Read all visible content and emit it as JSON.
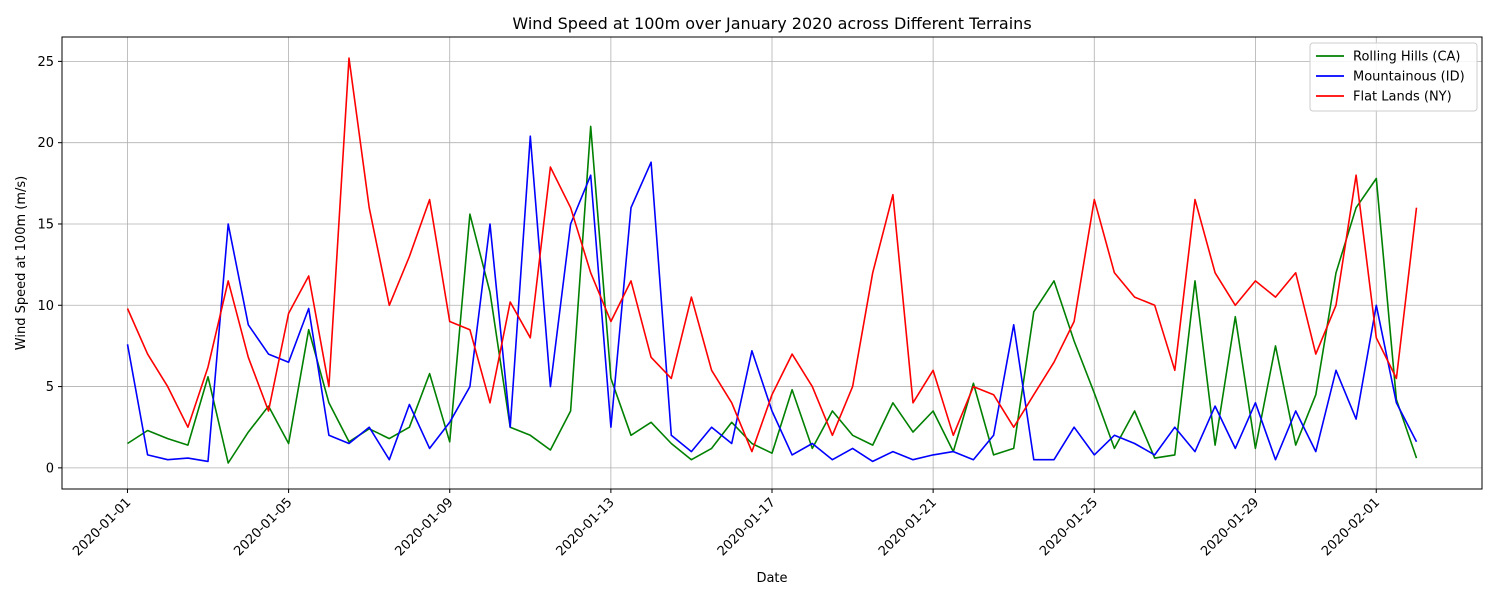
{
  "chart_data": {
    "type": "line",
    "title": "Wind Speed at 100m over January 2020 across Different Terrains",
    "xlabel": "Date",
    "ylabel": "Wind Speed at 100m (m/s)",
    "xlim": [
      "2019-12-30 09:00",
      "2020-02-03 15:00"
    ],
    "ylim": [
      -1.3,
      26.5
    ],
    "x_ticks": [
      "2020-01-01",
      "2020-01-05",
      "2020-01-09",
      "2020-01-13",
      "2020-01-17",
      "2020-01-21",
      "2020-01-25",
      "2020-01-29",
      "2020-02-01"
    ],
    "y_ticks": [
      0,
      5,
      10,
      15,
      20,
      25
    ],
    "grid": true,
    "legend_position": "top-right",
    "series": [
      {
        "name": "Rolling Hills (CA)",
        "color": "#008000",
        "x": [
          "2020-01-01 00:00",
          "2020-01-01 12:00",
          "2020-01-02 00:00",
          "2020-01-02 12:00",
          "2020-01-03 00:00",
          "2020-01-03 12:00",
          "2020-01-04 00:00",
          "2020-01-04 12:00",
          "2020-01-05 00:00",
          "2020-01-05 12:00",
          "2020-01-06 00:00",
          "2020-01-06 12:00",
          "2020-01-07 00:00",
          "2020-01-07 12:00",
          "2020-01-08 00:00",
          "2020-01-08 12:00",
          "2020-01-09 00:00",
          "2020-01-09 12:00",
          "2020-01-10 00:00",
          "2020-01-10 12:00",
          "2020-01-11 00:00",
          "2020-01-11 12:00",
          "2020-01-12 00:00",
          "2020-01-12 12:00",
          "2020-01-13 00:00",
          "2020-01-13 12:00",
          "2020-01-14 00:00",
          "2020-01-14 12:00",
          "2020-01-15 00:00",
          "2020-01-15 12:00",
          "2020-01-16 00:00",
          "2020-01-16 12:00",
          "2020-01-17 00:00",
          "2020-01-17 12:00",
          "2020-01-18 00:00",
          "2020-01-18 12:00",
          "2020-01-19 00:00",
          "2020-01-19 12:00",
          "2020-01-20 00:00",
          "2020-01-20 12:00",
          "2020-01-21 00:00",
          "2020-01-21 12:00",
          "2020-01-22 00:00",
          "2020-01-22 12:00",
          "2020-01-23 00:00",
          "2020-01-23 12:00",
          "2020-01-24 00:00",
          "2020-01-24 12:00",
          "2020-01-25 00:00",
          "2020-01-25 12:00",
          "2020-01-26 00:00",
          "2020-01-26 12:00",
          "2020-01-27 00:00",
          "2020-01-27 12:00",
          "2020-01-28 00:00",
          "2020-01-28 12:00",
          "2020-01-29 00:00",
          "2020-01-29 12:00",
          "2020-01-30 00:00",
          "2020-01-30 12:00",
          "2020-01-31 00:00",
          "2020-01-31 12:00",
          "2020-02-01 00:00",
          "2020-02-01 12:00",
          "2020-02-02 00:00"
        ],
        "values": [
          1.5,
          2.3,
          1.8,
          1.4,
          5.6,
          0.3,
          2.2,
          3.8,
          1.5,
          8.5,
          4.0,
          1.6,
          2.4,
          1.8,
          2.5,
          5.8,
          1.6,
          15.6,
          10.8,
          2.5,
          2.0,
          1.1,
          3.5,
          21.0,
          5.5,
          2.0,
          2.8,
          1.5,
          0.5,
          1.2,
          2.8,
          1.5,
          0.9,
          4.8,
          1.2,
          3.5,
          2.0,
          1.4,
          4.0,
          2.2,
          3.5,
          1.0,
          5.2,
          0.8,
          1.2,
          9.6,
          11.5,
          7.8,
          4.6,
          1.2,
          3.5,
          0.6,
          0.8,
          11.5,
          1.4,
          9.3,
          1.2,
          7.5,
          1.4,
          4.5,
          12.0,
          16.0,
          17.8,
          4.2,
          0.6
        ]
      },
      {
        "name": "Mountainous (ID)",
        "color": "#0000ff",
        "x": [
          "2020-01-01 00:00",
          "2020-01-01 12:00",
          "2020-01-02 00:00",
          "2020-01-02 12:00",
          "2020-01-03 00:00",
          "2020-01-03 12:00",
          "2020-01-04 00:00",
          "2020-01-04 12:00",
          "2020-01-05 00:00",
          "2020-01-05 12:00",
          "2020-01-06 00:00",
          "2020-01-06 12:00",
          "2020-01-07 00:00",
          "2020-01-07 12:00",
          "2020-01-08 00:00",
          "2020-01-08 12:00",
          "2020-01-09 00:00",
          "2020-01-09 12:00",
          "2020-01-10 00:00",
          "2020-01-10 12:00",
          "2020-01-11 00:00",
          "2020-01-11 12:00",
          "2020-01-12 00:00",
          "2020-01-12 12:00",
          "2020-01-13 00:00",
          "2020-01-13 12:00",
          "2020-01-14 00:00",
          "2020-01-14 12:00",
          "2020-01-15 00:00",
          "2020-01-15 12:00",
          "2020-01-16 00:00",
          "2020-01-16 12:00",
          "2020-01-17 00:00",
          "2020-01-17 12:00",
          "2020-01-18 00:00",
          "2020-01-18 12:00",
          "2020-01-19 00:00",
          "2020-01-19 12:00",
          "2020-01-20 00:00",
          "2020-01-20 12:00",
          "2020-01-21 00:00",
          "2020-01-21 12:00",
          "2020-01-22 00:00",
          "2020-01-22 12:00",
          "2020-01-23 00:00",
          "2020-01-23 12:00",
          "2020-01-24 00:00",
          "2020-01-24 12:00",
          "2020-01-25 00:00",
          "2020-01-25 12:00",
          "2020-01-26 00:00",
          "2020-01-26 12:00",
          "2020-01-27 00:00",
          "2020-01-27 12:00",
          "2020-01-28 00:00",
          "2020-01-28 12:00",
          "2020-01-29 00:00",
          "2020-01-29 12:00",
          "2020-01-30 00:00",
          "2020-01-30 12:00",
          "2020-01-31 00:00",
          "2020-01-31 12:00",
          "2020-02-01 00:00",
          "2020-02-01 12:00",
          "2020-02-02 00:00"
        ],
        "values": [
          7.6,
          0.8,
          0.5,
          0.6,
          0.4,
          15.0,
          8.8,
          7.0,
          6.5,
          9.8,
          2.0,
          1.5,
          2.5,
          0.5,
          3.9,
          1.2,
          2.8,
          5.0,
          15.0,
          2.5,
          20.4,
          5.0,
          15.0,
          18.0,
          2.5,
          16.0,
          18.8,
          2.0,
          1.0,
          2.5,
          1.5,
          7.2,
          3.5,
          0.8,
          1.5,
          0.5,
          1.2,
          0.4,
          1.0,
          0.5,
          0.8,
          1.0,
          0.5,
          2.0,
          8.8,
          0.5,
          0.5,
          2.5,
          0.8,
          2.0,
          1.5,
          0.8,
          2.5,
          1.0,
          3.8,
          1.2,
          4.0,
          0.5,
          3.5,
          1.0,
          6.0,
          3.0,
          10.0,
          4.0,
          1.6
        ]
      },
      {
        "name": "Flat Lands (NY)",
        "color": "#ff0000",
        "x": [
          "2020-01-01 00:00",
          "2020-01-01 12:00",
          "2020-01-02 00:00",
          "2020-01-02 12:00",
          "2020-01-03 00:00",
          "2020-01-03 12:00",
          "2020-01-04 00:00",
          "2020-01-04 12:00",
          "2020-01-05 00:00",
          "2020-01-05 12:00",
          "2020-01-06 00:00",
          "2020-01-06 12:00",
          "2020-01-07 00:00",
          "2020-01-07 12:00",
          "2020-01-08 00:00",
          "2020-01-08 12:00",
          "2020-01-09 00:00",
          "2020-01-09 12:00",
          "2020-01-10 00:00",
          "2020-01-10 12:00",
          "2020-01-11 00:00",
          "2020-01-11 12:00",
          "2020-01-12 00:00",
          "2020-01-12 12:00",
          "2020-01-13 00:00",
          "2020-01-13 12:00",
          "2020-01-14 00:00",
          "2020-01-14 12:00",
          "2020-01-15 00:00",
          "2020-01-15 12:00",
          "2020-01-16 00:00",
          "2020-01-16 12:00",
          "2020-01-17 00:00",
          "2020-01-17 12:00",
          "2020-01-18 00:00",
          "2020-01-18 12:00",
          "2020-01-19 00:00",
          "2020-01-19 12:00",
          "2020-01-20 00:00",
          "2020-01-20 12:00",
          "2020-01-21 00:00",
          "2020-01-21 12:00",
          "2020-01-22 00:00",
          "2020-01-22 12:00",
          "2020-01-23 00:00",
          "2020-01-23 12:00",
          "2020-01-24 00:00",
          "2020-01-24 12:00",
          "2020-01-25 00:00",
          "2020-01-25 12:00",
          "2020-01-26 00:00",
          "2020-01-26 12:00",
          "2020-01-27 00:00",
          "2020-01-27 12:00",
          "2020-01-28 00:00",
          "2020-01-28 12:00",
          "2020-01-29 00:00",
          "2020-01-29 12:00",
          "2020-01-30 00:00",
          "2020-01-30 12:00",
          "2020-01-31 00:00",
          "2020-01-31 12:00",
          "2020-02-01 00:00",
          "2020-02-01 12:00",
          "2020-02-02 00:00"
        ],
        "values": [
          9.8,
          7.0,
          5.0,
          2.5,
          6.2,
          11.5,
          6.8,
          3.5,
          9.5,
          11.8,
          5.0,
          25.2,
          16.0,
          10.0,
          13.0,
          16.5,
          9.0,
          8.5,
          4.0,
          10.2,
          8.0,
          18.5,
          16.0,
          12.0,
          9.0,
          11.5,
          6.8,
          5.5,
          10.5,
          6.0,
          4.0,
          1.0,
          4.5,
          7.0,
          5.0,
          2.0,
          5.0,
          12.0,
          16.8,
          4.0,
          6.0,
          2.0,
          5.0,
          4.5,
          2.5,
          4.5,
          6.5,
          9.0,
          16.5,
          12.0,
          10.5,
          10.0,
          6.0,
          16.5,
          12.0,
          10.0,
          11.5,
          10.5,
          12.0,
          7.0,
          10.0,
          18.0,
          8.0,
          5.5,
          16.0
        ]
      }
    ]
  }
}
